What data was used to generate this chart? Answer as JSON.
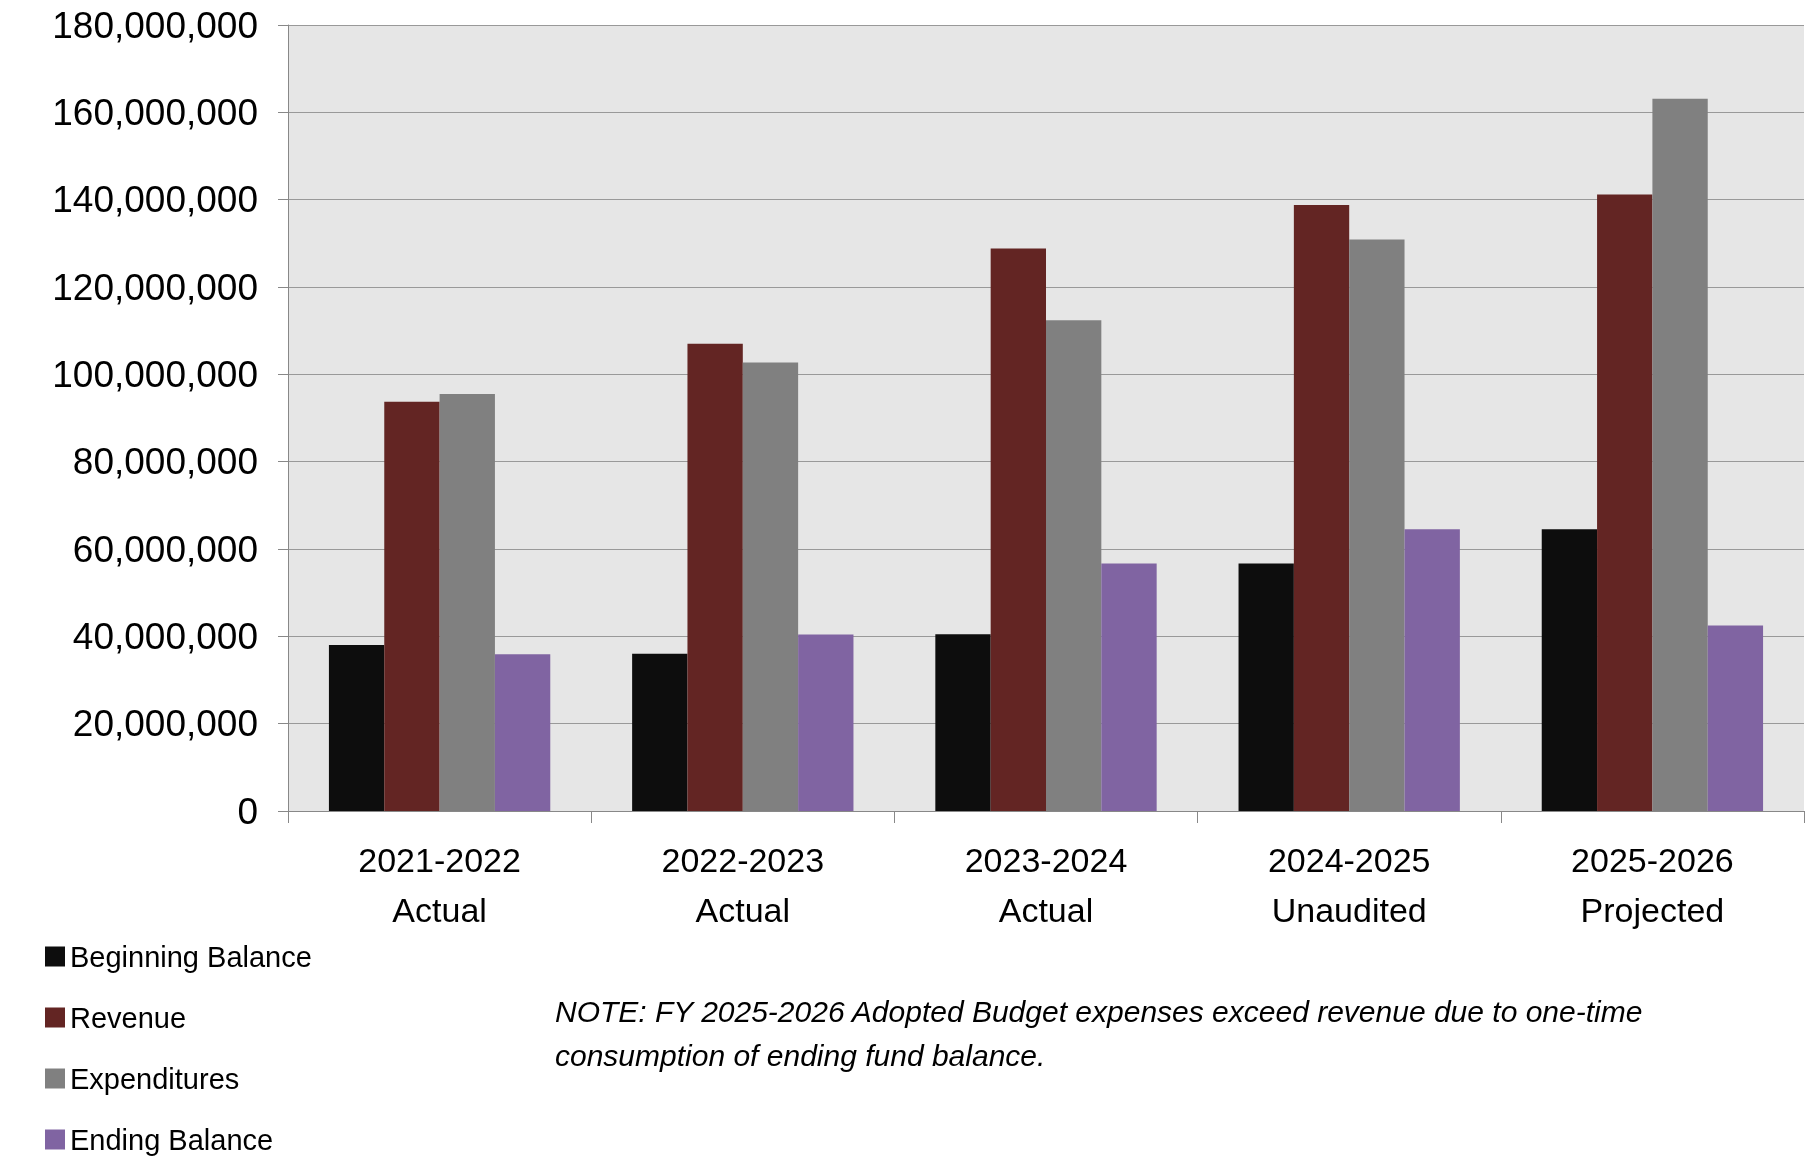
{
  "chart_data": {
    "type": "bar",
    "categories": [
      "2021-2022\nActual",
      "2022-2023\nActual",
      "2023-2024\nActual",
      "2024-2025\nUnaudited",
      "2025-2026\nProjected"
    ],
    "series": [
      {
        "name": "Beginning Balance",
        "color": "#0d0d0d",
        "values": [
          38000000,
          36000000,
          40500000,
          56700000,
          64500000
        ]
      },
      {
        "name": "Revenue",
        "color": "#632523",
        "values": [
          93700000,
          107000000,
          128800000,
          138800000,
          141200000
        ]
      },
      {
        "name": "Expenditures",
        "color": "#808080",
        "values": [
          95500000,
          102700000,
          112400000,
          130900000,
          163100000
        ]
      },
      {
        "name": "Ending Balance",
        "color": "#8064a2",
        "values": [
          35900000,
          40400000,
          56700000,
          64500000,
          42500000
        ]
      }
    ],
    "ylim": [
      0,
      180000000
    ],
    "yticks": [
      {
        "value": 0,
        "label": "0"
      },
      {
        "value": 20000000,
        "label": "20,000,000"
      },
      {
        "value": 40000000,
        "label": "40,000,000"
      },
      {
        "value": 60000000,
        "label": "60,000,000"
      },
      {
        "value": 80000000,
        "label": "80,000,000"
      },
      {
        "value": 100000000,
        "label": "100,000,000"
      },
      {
        "value": 120000000,
        "label": "120,000,000"
      },
      {
        "value": 140000000,
        "label": "140,000,000"
      },
      {
        "value": 160000000,
        "label": "160,000,000"
      },
      {
        "value": 180000000,
        "label": "180,000,000"
      }
    ],
    "grid": "y",
    "legend": "bottom left",
    "annotations": [
      "NOTE:  FY 2025-2026 Adopted Budget expenses exceed revenue due to one-time consumption of ending fund balance."
    ]
  }
}
